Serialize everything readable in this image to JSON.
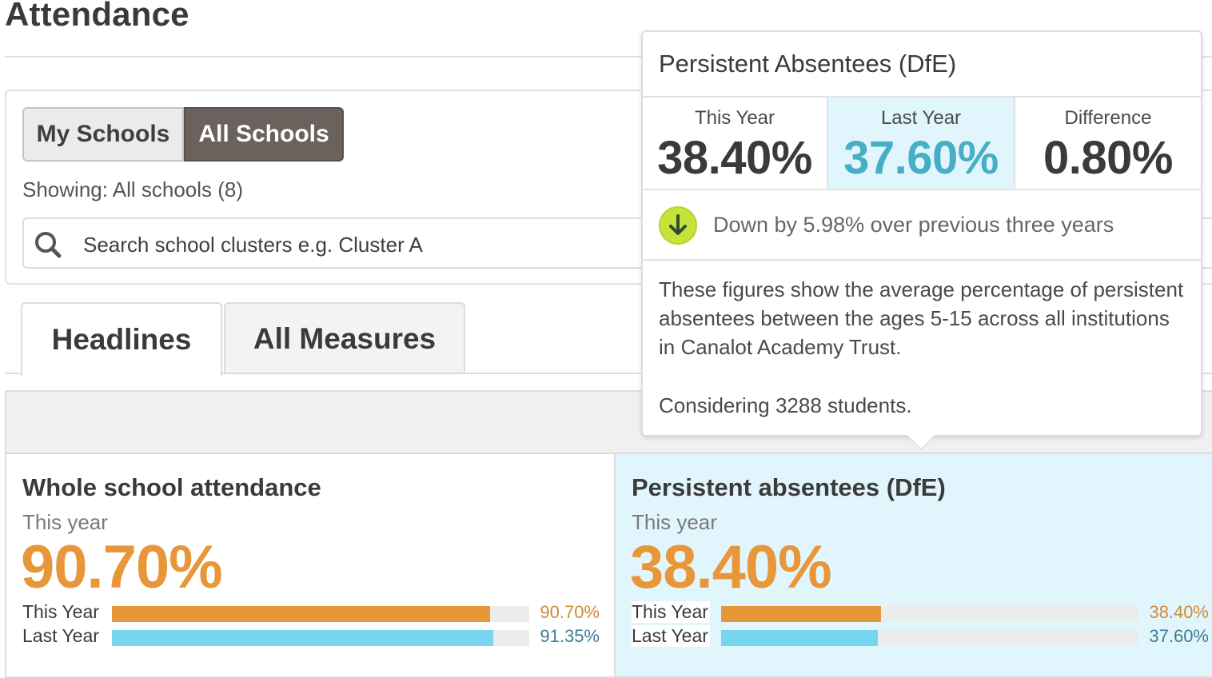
{
  "page": {
    "title": "Attendance"
  },
  "filters": {
    "toggle": {
      "my_schools": "My Schools",
      "all_schools": "All Schools"
    },
    "showing": "Showing: All schools (8)",
    "search_placeholder": "Search school clusters e.g. Cluster A"
  },
  "tabs": [
    {
      "label": "Headlines",
      "active": true
    },
    {
      "label": "All Measures",
      "active": false
    }
  ],
  "cards": [
    {
      "title": "Whole school attendance",
      "subtitle": "This year",
      "value": "90.70%",
      "rows": [
        {
          "label": "This Year",
          "value": "90.70%",
          "fraction": 0.907
        },
        {
          "label": "Last Year",
          "value": "91.35%",
          "fraction": 0.9135
        }
      ]
    },
    {
      "title": "Persistent absentees (DfE)",
      "subtitle": "This year",
      "value": "38.40%",
      "rows": [
        {
          "label": "This Year",
          "value": "38.40%",
          "fraction": 0.384
        },
        {
          "label": "Last Year",
          "value": "37.60%",
          "fraction": 0.376
        }
      ]
    }
  ],
  "tooltip": {
    "title": "Persistent Absentees (DfE)",
    "this_year_label": "This Year",
    "this_year_value": "38.40%",
    "last_year_label": "Last Year",
    "last_year_value": "37.60%",
    "difference_label": "Difference",
    "difference_value": "0.80%",
    "trend_text": "Down by 5.98% over previous three years",
    "description": "These figures show the average percentage of persistent absentees between the ages 5-15 across all institutions in Canalot Academy Trust.",
    "considering": "Considering 3288 students."
  },
  "colors": {
    "accent_orange": "#e8963a",
    "accent_blue": "#78d5ee",
    "active_toggle": "#6b625d",
    "highlight_bg": "#e1f6fc",
    "trend_icon": "#c7e23a"
  },
  "icons": {
    "search": "search-icon",
    "trend": "arrow-down-icon"
  }
}
